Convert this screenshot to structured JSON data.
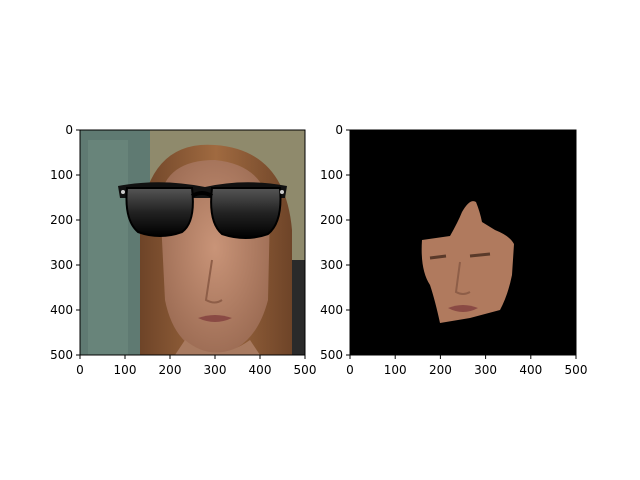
{
  "figure": {
    "panels": [
      {
        "id": "left",
        "image": "woman-face-with-sunglasses-overlay",
        "xlim": [
          0,
          500
        ],
        "ylim": [
          500,
          0
        ],
        "xticks": [
          "0",
          "100",
          "200",
          "300",
          "400",
          "500"
        ],
        "yticks": [
          "0",
          "100",
          "200",
          "300",
          "400",
          "500"
        ]
      },
      {
        "id": "right",
        "image": "segmented-face-on-black-background",
        "xlim": [
          0,
          500
        ],
        "ylim": [
          500,
          0
        ],
        "xticks": [
          "0",
          "100",
          "200",
          "300",
          "400",
          "500"
        ],
        "yticks": [
          "0",
          "100",
          "200",
          "300",
          "400",
          "500"
        ]
      }
    ],
    "colors": {
      "skin": "#b8856a",
      "hair": "#8a5a36",
      "wall": "#8a8a6a",
      "curtain": "#5f7a72",
      "lens": "#1a1a1a",
      "mask_bg": "#000000"
    }
  }
}
